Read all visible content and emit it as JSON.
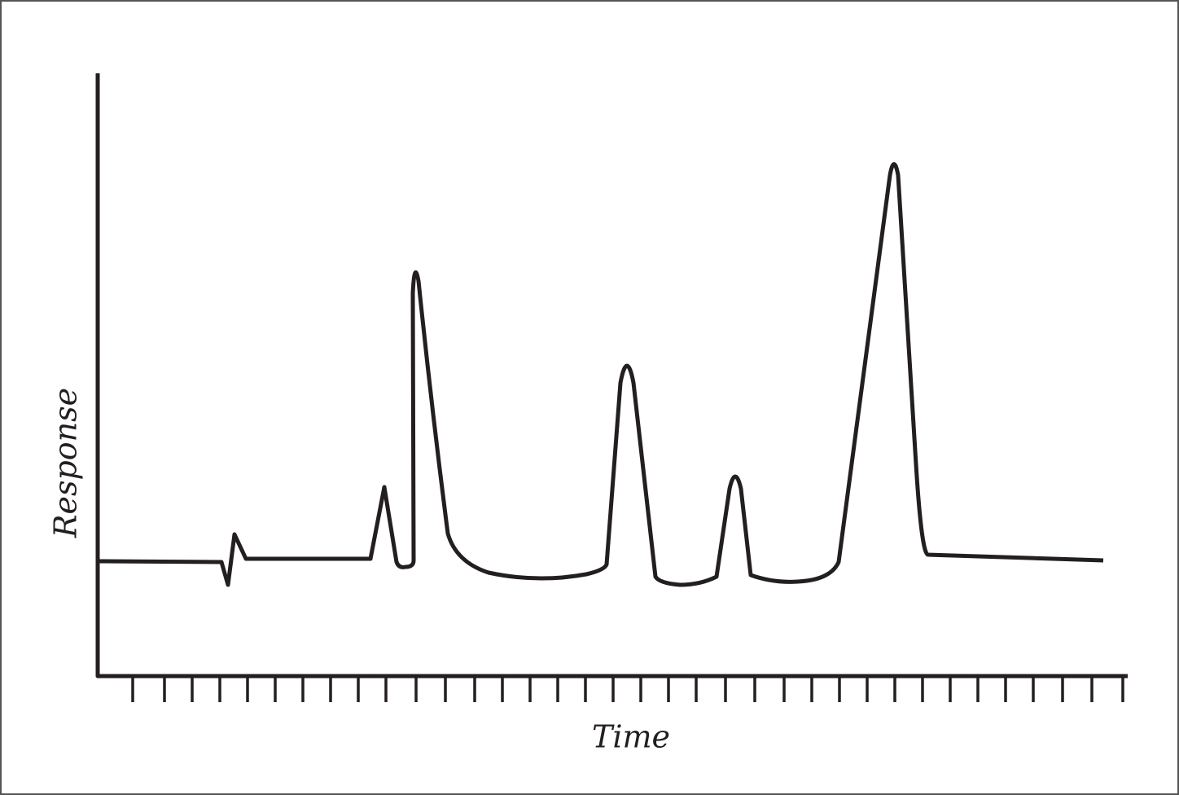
{
  "axes": {
    "y_label": "Response",
    "x_label": "Time"
  }
}
